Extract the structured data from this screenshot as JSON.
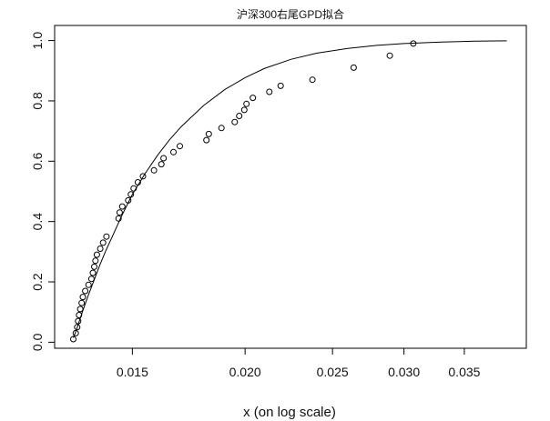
{
  "chart_data": {
    "type": "scatter",
    "title": "沪深300右尾GPD拟合",
    "xlabel": "x (on log scale)",
    "ylabel": "",
    "x_scale": "log",
    "xlim": [
      0.0123,
      0.041
    ],
    "ylim": [
      -0.02,
      1.05
    ],
    "x_ticks": [
      {
        "value": 0.015,
        "label": "0.015"
      },
      {
        "value": 0.02,
        "label": "0.020"
      },
      {
        "value": 0.025,
        "label": "0.025"
      },
      {
        "value": 0.03,
        "label": "0.030"
      },
      {
        "value": 0.035,
        "label": "0.035"
      }
    ],
    "y_ticks": [
      {
        "value": 0.0,
        "label": "0.0"
      },
      {
        "value": 0.2,
        "label": "0.2"
      },
      {
        "value": 0.4,
        "label": "0.4"
      },
      {
        "value": 0.6,
        "label": "0.6"
      },
      {
        "value": 0.8,
        "label": "0.8"
      },
      {
        "value": 1.0,
        "label": "1.0"
      }
    ],
    "grid": false,
    "series": [
      {
        "kind": "points",
        "marker": "open-circle",
        "x": [
          0.0129,
          0.01298,
          0.01303,
          0.01306,
          0.01309,
          0.01313,
          0.01318,
          0.01322,
          0.0133,
          0.01341,
          0.01351,
          0.01356,
          0.01361,
          0.01365,
          0.0137,
          0.01382,
          0.01392,
          0.01404,
          0.01448,
          0.01452,
          0.01462,
          0.01484,
          0.01494,
          0.01505,
          0.01521,
          0.01541,
          0.01585,
          0.01615,
          0.01624,
          0.01666,
          0.01693,
          0.01812,
          0.01823,
          0.01883,
          0.01948,
          0.0197,
          0.01996,
          0.02007,
          0.0204,
          0.02128,
          0.0219,
          0.02375,
          0.02639,
          0.02894,
          0.03073
        ],
        "y": [
          0.01,
          0.03,
          0.05,
          0.07,
          0.09,
          0.11,
          0.13,
          0.15,
          0.17,
          0.19,
          0.21,
          0.23,
          0.25,
          0.27,
          0.29,
          0.31,
          0.33,
          0.35,
          0.41,
          0.43,
          0.45,
          0.47,
          0.49,
          0.51,
          0.53,
          0.55,
          0.57,
          0.59,
          0.61,
          0.63,
          0.65,
          0.67,
          0.69,
          0.71,
          0.73,
          0.75,
          0.77,
          0.79,
          0.81,
          0.83,
          0.85,
          0.87,
          0.91,
          0.95,
          0.99
        ]
      },
      {
        "kind": "line",
        "x": [
          0.0129,
          0.013,
          0.0132,
          0.0134,
          0.0136,
          0.0138,
          0.014,
          0.0143,
          0.0146,
          0.015,
          0.0155,
          0.016,
          0.0165,
          0.017,
          0.018,
          0.019,
          0.02,
          0.021,
          0.0225,
          0.024,
          0.026,
          0.028,
          0.03,
          0.033,
          0.036,
          0.039
        ],
        "y": [
          0.015,
          0.04,
          0.1,
          0.155,
          0.205,
          0.255,
          0.3,
          0.36,
          0.42,
          0.49,
          0.56,
          0.62,
          0.672,
          0.715,
          0.785,
          0.838,
          0.877,
          0.907,
          0.938,
          0.958,
          0.974,
          0.984,
          0.99,
          0.995,
          0.998,
          0.999
        ]
      }
    ]
  }
}
